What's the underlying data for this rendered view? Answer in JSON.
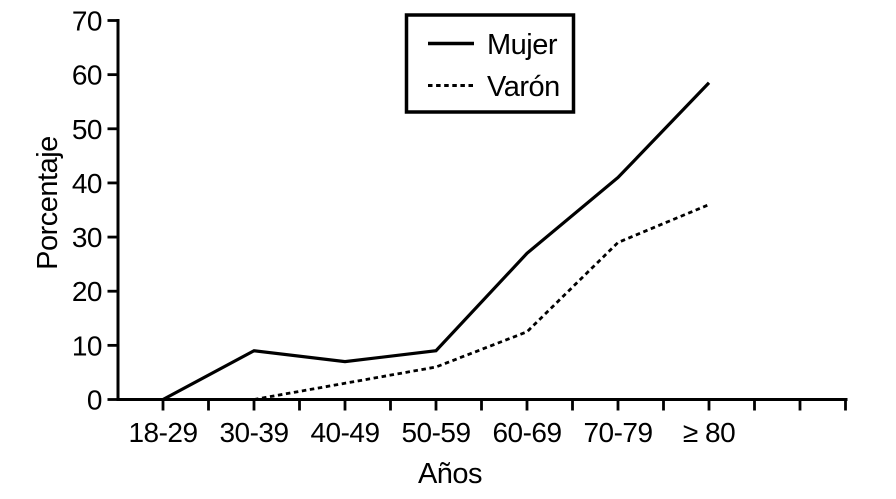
{
  "colors": {
    "ink": "#000000",
    "background": "#ffffff"
  },
  "chart_data": {
    "type": "line",
    "title": "",
    "xlabel": "Años",
    "ylabel": "Porcentaje",
    "categories": [
      "18-29",
      "30-39",
      "40-49",
      "50-59",
      "60-69",
      "70-79",
      "≥ 80"
    ],
    "series": [
      {
        "name": "Mujer",
        "style": "solid",
        "values": [
          0,
          9,
          7,
          9,
          27,
          41,
          58.5
        ]
      },
      {
        "name": "Varón",
        "style": "dashed",
        "values": [
          null,
          0,
          3,
          6,
          12.5,
          29,
          36
        ]
      }
    ],
    "ylim": [
      0,
      70
    ],
    "yticks": [
      0,
      10,
      20,
      30,
      40,
      50,
      60,
      70
    ],
    "grid": false,
    "legend_position": "top-center"
  }
}
